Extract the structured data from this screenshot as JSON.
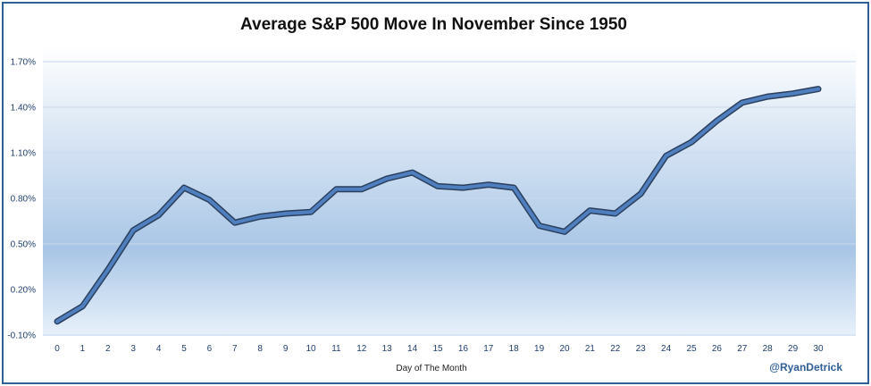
{
  "chart_data": {
    "type": "line",
    "title": "Average S&P 500 Move In November Since 1950",
    "xlabel": "Day of The Month",
    "ylabel": "",
    "credit": "@RyanDetrick",
    "x": [
      0,
      1,
      2,
      3,
      4,
      5,
      6,
      7,
      8,
      9,
      10,
      11,
      12,
      13,
      14,
      15,
      16,
      17,
      18,
      19,
      20,
      21,
      22,
      23,
      24,
      25,
      26,
      27,
      28,
      29,
      30
    ],
    "x_tick_labels": [
      "0",
      "1",
      "2",
      "3",
      "4",
      "5",
      "6",
      "7",
      "8",
      "9",
      "10",
      "11",
      "12",
      "13",
      "14",
      "15",
      "16",
      "17",
      "18",
      "19",
      "20",
      "21",
      "22",
      "23",
      "24",
      "25",
      "26",
      "27",
      "28",
      "29",
      "30"
    ],
    "y_tick_labels": [
      "1.70%",
      "1.40%",
      "1.10%",
      "0.80%",
      "0.50%",
      "0.20%",
      "-0.10%"
    ],
    "y_ticks": [
      1.7,
      1.4,
      1.1,
      0.8,
      0.5,
      0.2,
      -0.1
    ],
    "ylim": [
      -0.1,
      1.7
    ],
    "grid": true,
    "series": [
      {
        "values": [
          -0.01,
          0.09,
          0.33,
          0.59,
          0.69,
          0.87,
          0.79,
          0.64,
          0.68,
          0.7,
          0.71,
          0.86,
          0.86,
          0.93,
          0.97,
          0.88,
          0.87,
          0.89,
          0.87,
          0.62,
          0.58,
          0.72,
          0.7,
          0.83,
          1.08,
          1.17,
          1.31,
          1.43,
          1.47,
          1.49,
          1.52
        ]
      }
    ],
    "colors": {
      "line": "#4f7fbf",
      "line_shadow": "#2a3f5c",
      "frame": "#2f5f96"
    }
  }
}
